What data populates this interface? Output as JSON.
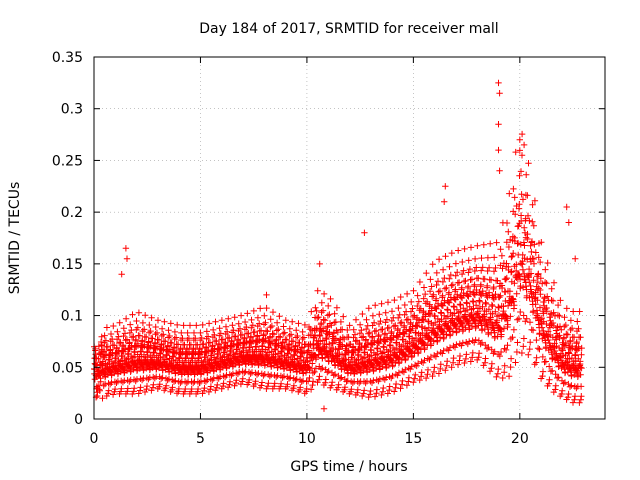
{
  "chart_data": {
    "type": "scatter",
    "title": "Day 184 of 2017, SRMTID for receiver mall",
    "xlabel": "GPS time / hours",
    "ylabel": "SRMTID / TECUs",
    "xlim": [
      0,
      24
    ],
    "ylim": [
      0,
      0.35
    ],
    "xticks": [
      0,
      5,
      10,
      15,
      20
    ],
    "xtick_labels": [
      "0",
      "5",
      "10",
      "15",
      "20"
    ],
    "yticks": [
      0,
      0.05,
      0.1,
      0.15,
      0.2,
      0.25,
      0.3,
      0.35
    ],
    "ytick_labels": [
      "0",
      "0.05",
      "0.1",
      "0.15",
      "0.2",
      "0.25",
      "0.3",
      "0.35"
    ],
    "grid": true,
    "legend": "none",
    "marker": "plus",
    "color": "#ff0000",
    "envelope": {
      "description": "approximate per-time level of the SRMTID cloud (hours vs TECU)",
      "t": [
        0,
        1,
        2,
        3,
        4,
        5,
        6,
        7,
        8,
        9,
        10,
        10.5,
        11,
        12,
        13,
        14,
        15,
        16,
        17,
        18,
        19,
        19.5,
        20,
        20.5,
        21,
        21.5,
        22,
        22.5,
        22.9
      ],
      "base": [
        0.045,
        0.05,
        0.055,
        0.055,
        0.05,
        0.05,
        0.055,
        0.06,
        0.06,
        0.055,
        0.05,
        0.07,
        0.065,
        0.05,
        0.055,
        0.06,
        0.07,
        0.085,
        0.095,
        0.1,
        0.09,
        0.11,
        0.15,
        0.13,
        0.09,
        0.07,
        0.055,
        0.05,
        0.05
      ],
      "spread": [
        0.015,
        0.015,
        0.018,
        0.015,
        0.015,
        0.015,
        0.015,
        0.015,
        0.018,
        0.015,
        0.015,
        0.02,
        0.02,
        0.015,
        0.02,
        0.02,
        0.02,
        0.025,
        0.025,
        0.025,
        0.03,
        0.04,
        0.05,
        0.04,
        0.03,
        0.025,
        0.02,
        0.02,
        0.02
      ]
    },
    "notable_points": [
      {
        "t": 1.5,
        "v": 0.165
      },
      {
        "t": 1.55,
        "v": 0.155
      },
      {
        "t": 1.3,
        "v": 0.14
      },
      {
        "t": 8.1,
        "v": 0.12
      },
      {
        "t": 10.6,
        "v": 0.15
      },
      {
        "t": 12.7,
        "v": 0.18
      },
      {
        "t": 16.5,
        "v": 0.225
      },
      {
        "t": 16.45,
        "v": 0.21
      },
      {
        "t": 19.0,
        "v": 0.325
      },
      {
        "t": 19.05,
        "v": 0.315
      },
      {
        "t": 19.0,
        "v": 0.285
      },
      {
        "t": 19.0,
        "v": 0.26
      },
      {
        "t": 19.05,
        "v": 0.24
      },
      {
        "t": 20.0,
        "v": 0.27
      },
      {
        "t": 20.2,
        "v": 0.265
      },
      {
        "t": 20.1,
        "v": 0.255
      },
      {
        "t": 22.2,
        "v": 0.205
      },
      {
        "t": 22.3,
        "v": 0.19
      },
      {
        "t": 22.6,
        "v": 0.155
      },
      {
        "t": 10.8,
        "v": 0.01
      },
      {
        "t": 0.4,
        "v": 0.02
      }
    ]
  }
}
